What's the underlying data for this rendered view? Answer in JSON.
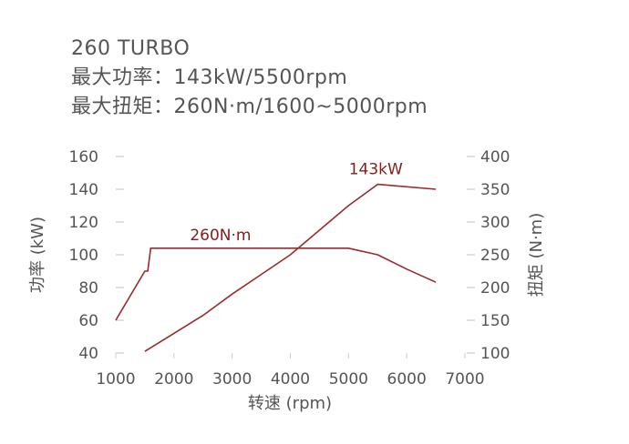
{
  "header": {
    "model": "260 TURBO",
    "power_line": "最大功率：143kW/5500rpm",
    "torque_line": "最大扭矩：260N·m/1600~5000rpm"
  },
  "chart_data": {
    "type": "line",
    "xlabel": "转速 (rpm)",
    "ylabel_left": "功率 (kW)",
    "ylabel_right": "扭矩 (N·m)",
    "xlim": [
      1000,
      7000
    ],
    "ylim_left": [
      40,
      160
    ],
    "ylim_right": [
      100,
      400
    ],
    "x_ticks": [
      "1000",
      "2000",
      "3000",
      "4000",
      "5000",
      "6000",
      "7000"
    ],
    "y_left_ticks": [
      "160",
      "140",
      "120",
      "100",
      "80",
      "60",
      "40"
    ],
    "y_right_ticks": [
      "400",
      "350",
      "300",
      "250",
      "200",
      "150",
      "100"
    ],
    "grid": false,
    "line_color": "#9b2a2a",
    "annotations": {
      "power_peak": "143kW",
      "torque_plateau": "260N·m"
    },
    "series": [
      {
        "axis": "left",
        "x": [
          1500,
          2000,
          2500,
          3000,
          3500,
          4000,
          4500,
          5000,
          5500,
          6500
        ],
        "y": [
          41,
          52,
          63,
          76,
          88,
          100,
          115,
          130,
          143,
          140
        ]
      },
      {
        "axis": "right",
        "x": [
          1000,
          1500,
          1550,
          1600,
          2000,
          3000,
          4000,
          5000,
          5500,
          6000,
          6500
        ],
        "y": [
          150,
          225,
          225,
          260,
          260,
          260,
          260,
          260,
          250,
          228,
          208
        ]
      }
    ]
  }
}
